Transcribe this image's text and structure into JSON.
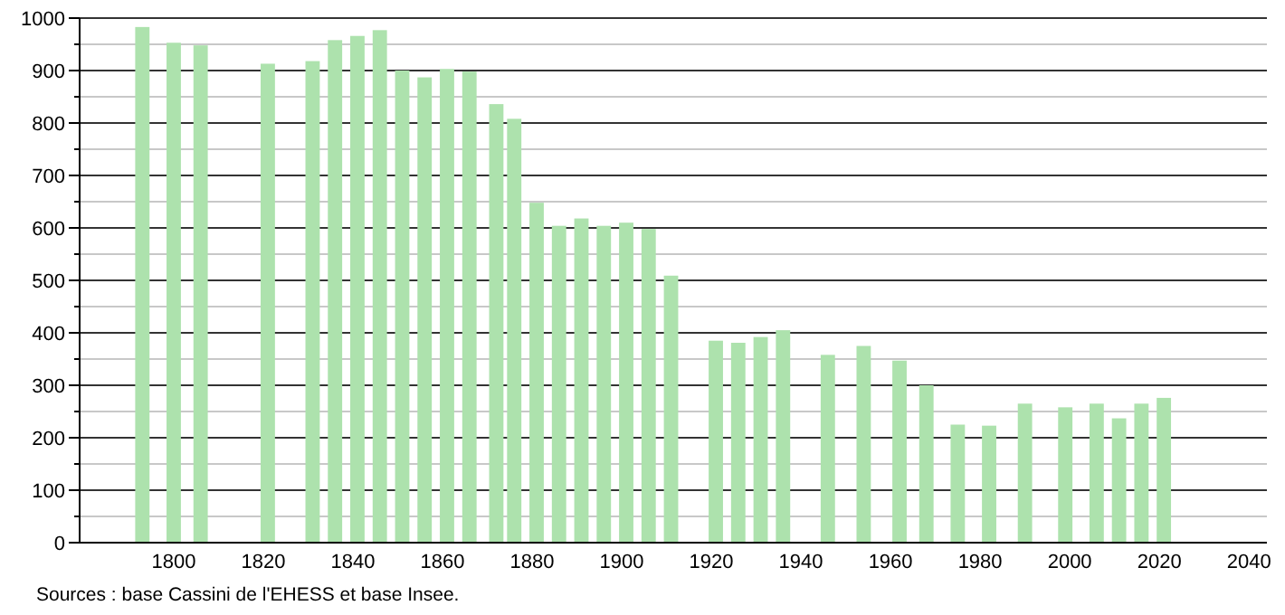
{
  "chart_data": {
    "type": "bar",
    "x": [
      1793,
      1800,
      1806,
      1821,
      1831,
      1836,
      1841,
      1846,
      1851,
      1856,
      1861,
      1866,
      1872,
      1876,
      1881,
      1886,
      1891,
      1896,
      1901,
      1906,
      1911,
      1921,
      1926,
      1931,
      1936,
      1946,
      1954,
      1962,
      1968,
      1975,
      1982,
      1990,
      1999,
      2006,
      2011,
      2016,
      2021
    ],
    "values": [
      983,
      953,
      948,
      913,
      918,
      958,
      966,
      977,
      900,
      887,
      903,
      898,
      836,
      808,
      648,
      604,
      618,
      604,
      610,
      598,
      509,
      385,
      381,
      392,
      405,
      358,
      375,
      347,
      300,
      225,
      223,
      265,
      258,
      265,
      237,
      265,
      276
    ],
    "color": "#ade2ad",
    "xlim": [
      1779,
      2044
    ],
    "xticks": [
      1800,
      1820,
      1840,
      1860,
      1880,
      1900,
      1920,
      1940,
      1960,
      1980,
      2000,
      2020,
      2040
    ],
    "ylim": [
      0,
      1000
    ],
    "yticks": [
      0,
      {
        "value": 50,
        "label": null
      },
      100,
      {
        "value": 150,
        "label": null
      },
      200,
      {
        "value": 250,
        "label": null
      },
      300,
      {
        "value": 350,
        "label": null
      },
      400,
      {
        "value": 450,
        "label": null
      },
      500,
      {
        "value": 550,
        "label": null
      },
      600,
      {
        "value": 650,
        "label": null
      },
      700,
      {
        "value": 750,
        "label": null
      },
      800,
      {
        "value": 850,
        "label": null
      },
      900,
      {
        "value": 950,
        "label": null
      },
      1000
    ],
    "grid": true,
    "annotations": [
      "Sources : base Cassini de l'EHESS et base Insee."
    ]
  }
}
